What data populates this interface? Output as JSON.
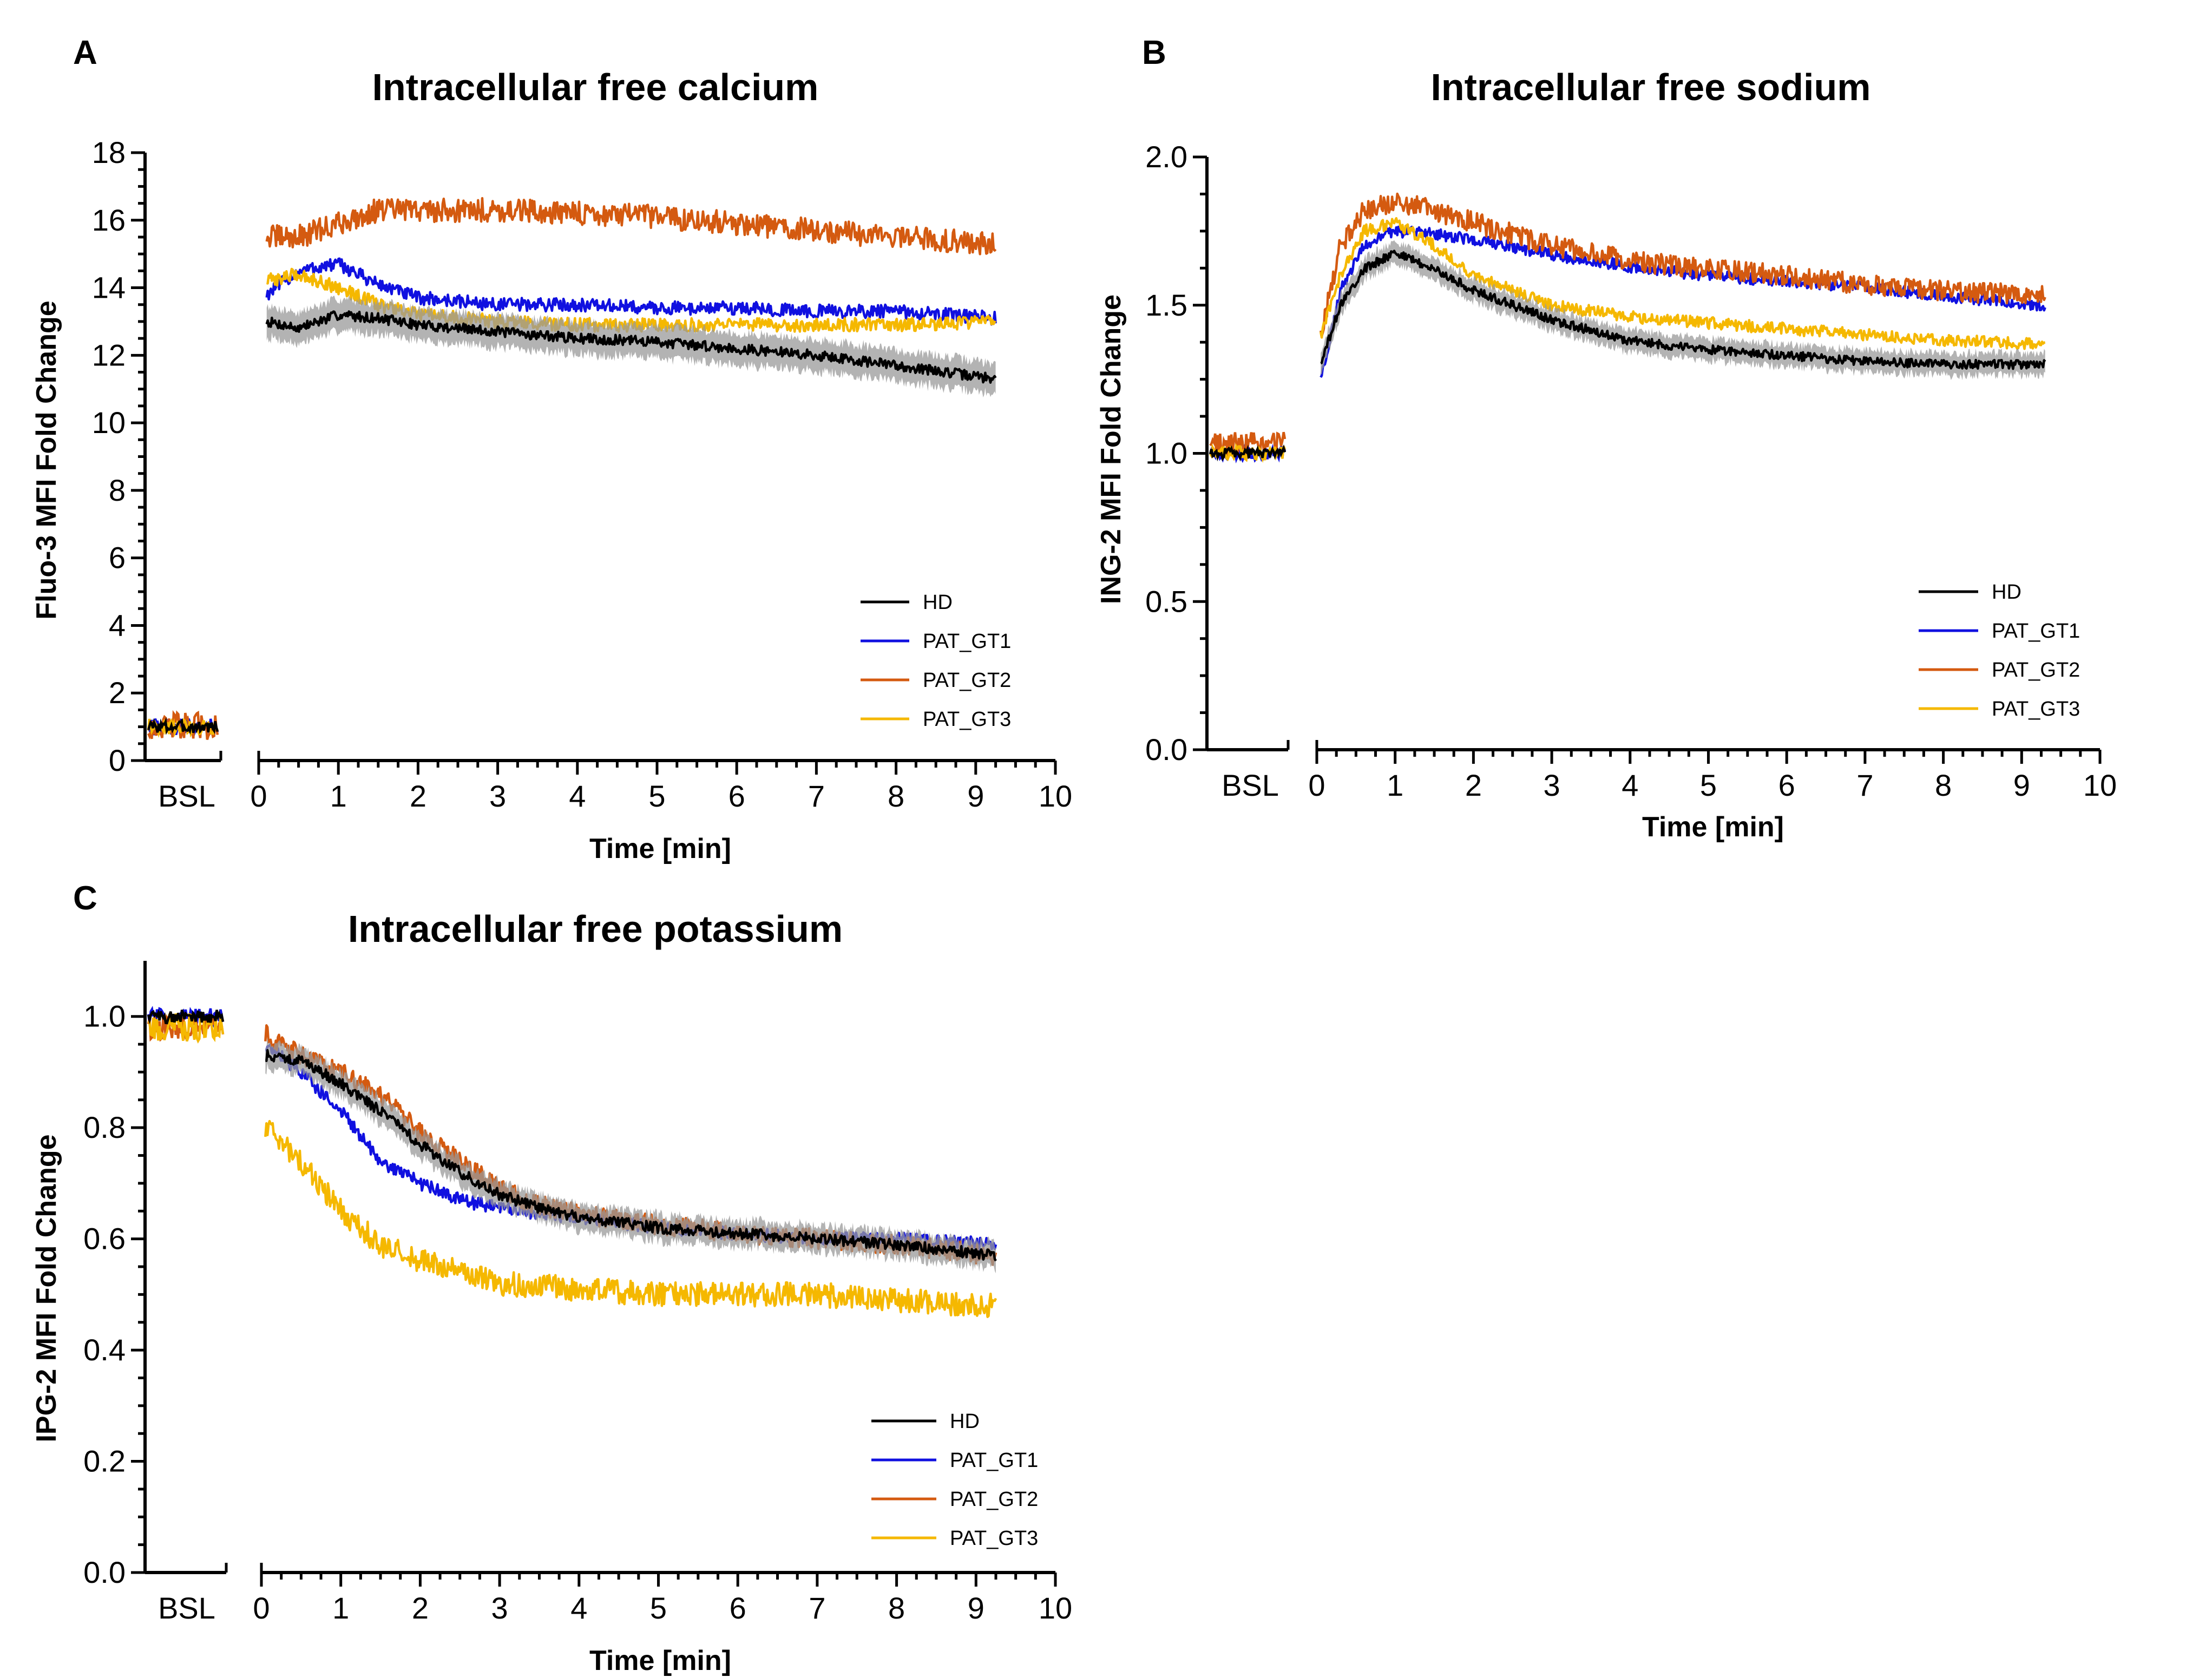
{
  "colors": {
    "HD": "#000000",
    "HD_band": "#9a9a9a",
    "PAT_GT1": "#1010e0",
    "PAT_GT2": "#d45a10",
    "PAT_GT3": "#f5b800"
  },
  "chart_data": [
    {
      "panel": "A",
      "type": "line",
      "title": "Intracellular free calcium",
      "xlabel": "Time [min]",
      "ylabel": "Fluo-3 MFI Fold Change",
      "baseline_label": "BSL",
      "ylim": [
        0,
        18
      ],
      "yticks": [
        0,
        2,
        4,
        6,
        8,
        10,
        12,
        14,
        16,
        18
      ],
      "ytick_labels": [
        "0",
        "2",
        "4",
        "6",
        "8",
        "10",
        "12",
        "14",
        "16",
        "18"
      ],
      "xlim": [
        0,
        10
      ],
      "xticks": [
        0,
        1,
        2,
        3,
        4,
        5,
        6,
        7,
        8,
        9,
        10
      ],
      "xtick_labels": [
        "0",
        "1",
        "2",
        "3",
        "4",
        "5",
        "6",
        "7",
        "8",
        "9",
        "10"
      ],
      "legend_position": "bottom-right",
      "series": [
        {
          "name": "HD",
          "baseline": 1.0,
          "band": 0.5,
          "noise": 0.15,
          "x": [
            0.1,
            0.5,
            1.0,
            1.5,
            2.0,
            3.0,
            4.0,
            5.0,
            6.0,
            7.0,
            8.0,
            9.25
          ],
          "values": [
            13.0,
            12.8,
            13.2,
            13.1,
            12.9,
            12.7,
            12.5,
            12.4,
            12.2,
            12.0,
            11.7,
            11.3
          ]
        },
        {
          "name": "PAT_GT1",
          "baseline": 1.0,
          "noise": 0.2,
          "x": [
            0.1,
            0.5,
            1.0,
            1.5,
            2.0,
            3.0,
            4.0,
            5.0,
            6.0,
            7.0,
            8.0,
            9.25
          ],
          "values": [
            13.8,
            14.5,
            14.7,
            14.1,
            13.7,
            13.5,
            13.5,
            13.4,
            13.4,
            13.3,
            13.3,
            13.1
          ]
        },
        {
          "name": "PAT_GT2",
          "baseline": 1.0,
          "noise": 0.35,
          "x": [
            0.1,
            0.5,
            1.0,
            1.5,
            2.0,
            2.5,
            3.0,
            4.0,
            5.0,
            6.0,
            7.0,
            8.0,
            9.25
          ],
          "values": [
            15.5,
            15.5,
            15.9,
            16.3,
            16.3,
            16.3,
            16.3,
            16.2,
            16.1,
            15.9,
            15.7,
            15.5,
            15.3
          ]
        },
        {
          "name": "PAT_GT3",
          "baseline": 1.0,
          "noise": 0.2,
          "x": [
            0.1,
            0.5,
            1.0,
            1.5,
            2.0,
            3.0,
            4.0,
            5.0,
            6.0,
            7.0,
            8.0,
            9.25
          ],
          "values": [
            14.2,
            14.4,
            14.0,
            13.5,
            13.2,
            13.0,
            12.9,
            12.9,
            12.9,
            12.9,
            12.9,
            13.0
          ]
        }
      ]
    },
    {
      "panel": "B",
      "type": "line",
      "title": "Intracellular free sodium",
      "xlabel": "Time [min]",
      "ylabel": "ING-2 MFI Fold Change",
      "baseline_label": "BSL",
      "ylim": [
        0,
        2
      ],
      "yticks": [
        0,
        0.5,
        1.0,
        1.5,
        2.0
      ],
      "ytick_labels": [
        "0.0",
        "0.5",
        "1.0",
        "1.5",
        "2.0"
      ],
      "xlim": [
        0,
        10
      ],
      "xticks": [
        0,
        1,
        2,
        3,
        4,
        5,
        6,
        7,
        8,
        9,
        10
      ],
      "xtick_labels": [
        "0",
        "1",
        "2",
        "3",
        "4",
        "5",
        "6",
        "7",
        "8",
        "9",
        "10"
      ],
      "legend_position": "bottom-right",
      "series": [
        {
          "name": "HD",
          "baseline": 1.0,
          "band": 0.04,
          "noise": 0.015,
          "x": [
            0.05,
            0.3,
            0.6,
            1.0,
            1.5,
            2.0,
            3.0,
            4.0,
            5.0,
            6.0,
            7.0,
            8.0,
            9.3
          ],
          "values": [
            1.3,
            1.5,
            1.62,
            1.68,
            1.62,
            1.55,
            1.45,
            1.38,
            1.35,
            1.33,
            1.31,
            1.3,
            1.3
          ]
        },
        {
          "name": "PAT_GT1",
          "baseline": 1.0,
          "noise": 0.02,
          "x": [
            0.05,
            0.3,
            0.6,
            1.0,
            1.5,
            2.0,
            3.0,
            4.0,
            5.0,
            6.0,
            7.0,
            8.0,
            9.3
          ],
          "values": [
            1.25,
            1.55,
            1.7,
            1.75,
            1.74,
            1.72,
            1.67,
            1.63,
            1.6,
            1.58,
            1.56,
            1.53,
            1.5
          ]
        },
        {
          "name": "PAT_GT2",
          "baseline": 1.03,
          "noise": 0.035,
          "x": [
            0.05,
            0.3,
            0.6,
            1.0,
            1.5,
            2.0,
            3.0,
            4.0,
            5.0,
            6.0,
            7.0,
            8.0,
            9.3
          ],
          "values": [
            1.4,
            1.7,
            1.82,
            1.85,
            1.82,
            1.78,
            1.7,
            1.65,
            1.62,
            1.6,
            1.57,
            1.55,
            1.53
          ]
        },
        {
          "name": "PAT_GT3",
          "baseline": 1.0,
          "noise": 0.02,
          "x": [
            0.05,
            0.3,
            0.6,
            1.0,
            1.5,
            2.0,
            3.0,
            4.0,
            5.0,
            6.0,
            7.0,
            8.0,
            9.3
          ],
          "values": [
            1.4,
            1.6,
            1.75,
            1.78,
            1.7,
            1.6,
            1.5,
            1.46,
            1.44,
            1.42,
            1.4,
            1.38,
            1.37
          ]
        }
      ]
    },
    {
      "panel": "C",
      "type": "line",
      "title": "Intracellular free potassium",
      "xlabel": "Time [min]",
      "ylabel": "IPG-2 MFI Fold Change",
      "baseline_label": "BSL",
      "ylim": [
        0,
        1.1
      ],
      "yticks": [
        0,
        0.2,
        0.4,
        0.6,
        0.8,
        1.0
      ],
      "ytick_labels": [
        "0.0",
        "0.2",
        "0.4",
        "0.6",
        "0.8",
        "1.0"
      ],
      "xlim": [
        0,
        10
      ],
      "xticks": [
        0,
        1,
        2,
        3,
        4,
        5,
        6,
        7,
        8,
        9,
        10
      ],
      "xtick_labels": [
        "0",
        "1",
        "2",
        "3",
        "4",
        "5",
        "6",
        "7",
        "8",
        "9",
        "10"
      ],
      "legend_position": "bottom-right",
      "series": [
        {
          "name": "HD",
          "baseline": 1.0,
          "band": 0.025,
          "noise": 0.01,
          "x": [
            0.05,
            0.5,
            1.0,
            1.5,
            2.0,
            2.5,
            3.0,
            3.5,
            4.0,
            5.0,
            6.0,
            7.0,
            8.0,
            9.25
          ],
          "values": [
            0.93,
            0.92,
            0.88,
            0.83,
            0.77,
            0.72,
            0.68,
            0.655,
            0.64,
            0.62,
            0.61,
            0.6,
            0.59,
            0.57
          ]
        },
        {
          "name": "PAT_GT1",
          "baseline": 1.0,
          "noise": 0.012,
          "x": [
            0.05,
            0.5,
            1.0,
            1.5,
            2.0,
            2.5,
            3.0,
            3.5,
            4.0,
            5.0,
            6.0,
            7.0,
            8.0,
            9.25
          ],
          "values": [
            0.95,
            0.9,
            0.83,
            0.74,
            0.7,
            0.67,
            0.655,
            0.645,
            0.64,
            0.62,
            0.61,
            0.6,
            0.6,
            0.59
          ]
        },
        {
          "name": "PAT_GT2",
          "baseline": 0.98,
          "noise": 0.018,
          "x": [
            0.05,
            0.5,
            1.0,
            1.5,
            2.0,
            2.5,
            3.0,
            3.5,
            4.0,
            5.0,
            6.0,
            7.0,
            8.0,
            9.25
          ],
          "values": [
            0.97,
            0.93,
            0.9,
            0.86,
            0.79,
            0.74,
            0.69,
            0.66,
            0.645,
            0.625,
            0.61,
            0.6,
            0.59,
            0.57
          ]
        },
        {
          "name": "PAT_GT3",
          "baseline": 0.98,
          "noise": 0.022,
          "x": [
            0.05,
            0.5,
            1.0,
            1.5,
            2.0,
            2.5,
            3.0,
            4.0,
            5.0,
            6.0,
            7.0,
            8.0,
            9.25
          ],
          "values": [
            0.8,
            0.74,
            0.65,
            0.59,
            0.56,
            0.54,
            0.52,
            0.51,
            0.5,
            0.5,
            0.5,
            0.49,
            0.48
          ]
        }
      ]
    }
  ]
}
